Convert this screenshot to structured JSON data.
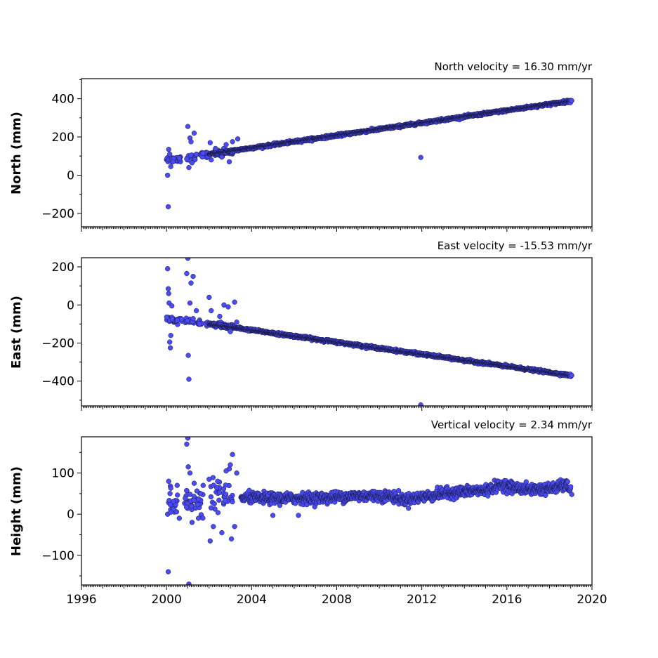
{
  "chart_data": [
    {
      "type": "scatter",
      "name": "north",
      "title": "North velocity = 16.30 mm/yr",
      "ylabel": "North (mm)",
      "xlim": [
        1996,
        2020
      ],
      "ylim": [
        -270,
        505
      ],
      "yticks": [
        -200,
        0,
        200,
        400
      ],
      "ytick_labels": [
        "−200",
        "0",
        "200",
        "400"
      ],
      "xticks": [],
      "xtick_labels": [],
      "trend": {
        "start": [
          2002.0,
          110
        ],
        "end": [
          2019.0,
          388
        ]
      },
      "clusters": [
        {
          "x": 2000.15,
          "y": 82
        },
        {
          "x": 2000.45,
          "y": 85
        },
        {
          "x": 2001.2,
          "y": 93
        },
        {
          "x": 2001.75,
          "y": 105
        },
        {
          "x": 2002.4,
          "y": 115
        },
        {
          "x": 2002.9,
          "y": 122
        }
      ],
      "points": [
        [
          2000.05,
          0
        ],
        [
          2000.08,
          -165
        ],
        [
          2000.1,
          135
        ],
        [
          2000.15,
          110
        ],
        [
          2000.2,
          45
        ],
        [
          2000.3,
          70
        ],
        [
          2000.6,
          90
        ],
        [
          2000.95,
          85
        ],
        [
          2001.0,
          255
        ],
        [
          2001.05,
          40
        ],
        [
          2001.1,
          195
        ],
        [
          2001.15,
          175
        ],
        [
          2001.2,
          65
        ],
        [
          2001.3,
          220
        ],
        [
          2001.4,
          110
        ],
        [
          2002.05,
          170
        ],
        [
          2002.1,
          80
        ],
        [
          2002.3,
          140
        ],
        [
          2002.6,
          95
        ],
        [
          2002.8,
          160
        ],
        [
          2002.95,
          70
        ],
        [
          2003.1,
          175
        ],
        [
          2003.35,
          190
        ],
        [
          2011.95,
          93
        ],
        [
          2019.05,
          390
        ]
      ]
    },
    {
      "type": "scatter",
      "name": "east",
      "title": "East velocity = -15.53 mm/yr",
      "ylabel": "East (mm)",
      "xlim": [
        1996,
        2020
      ],
      "ylim": [
        -530,
        248
      ],
      "yticks": [
        -400,
        -200,
        0,
        200
      ],
      "ytick_labels": [
        "−400",
        "−200",
        "0",
        "200"
      ],
      "xticks": [],
      "xtick_labels": [],
      "trend": {
        "start": [
          2002.0,
          -100
        ],
        "end": [
          2019.0,
          -370
        ]
      },
      "clusters": [
        {
          "x": 2000.2,
          "y": -75
        },
        {
          "x": 2000.5,
          "y": -80
        },
        {
          "x": 2001.1,
          "y": -88
        },
        {
          "x": 2001.7,
          "y": -95
        },
        {
          "x": 2002.4,
          "y": -105
        },
        {
          "x": 2002.9,
          "y": -112
        }
      ],
      "points": [
        [
          2000.05,
          190
        ],
        [
          2000.08,
          85
        ],
        [
          2000.1,
          60
        ],
        [
          2000.12,
          10
        ],
        [
          2000.15,
          -195
        ],
        [
          2000.18,
          -225
        ],
        [
          2000.2,
          -160
        ],
        [
          2000.25,
          -5
        ],
        [
          2000.95,
          165
        ],
        [
          2001.0,
          245
        ],
        [
          2001.02,
          -265
        ],
        [
          2001.05,
          -390
        ],
        [
          2001.1,
          10
        ],
        [
          2001.15,
          115
        ],
        [
          2001.25,
          150
        ],
        [
          2001.4,
          -30
        ],
        [
          2002.0,
          40
        ],
        [
          2002.1,
          -30
        ],
        [
          2002.5,
          -60
        ],
        [
          2002.7,
          0
        ],
        [
          2002.9,
          -10
        ],
        [
          2003.0,
          -140
        ],
        [
          2003.2,
          15
        ],
        [
          2003.3,
          -90
        ],
        [
          2011.95,
          -525
        ],
        [
          2019.05,
          -370
        ]
      ]
    },
    {
      "type": "scatter",
      "name": "height",
      "title": "Vertical velocity = 2.34 mm/yr",
      "ylabel": "Height (mm)",
      "xlim": [
        1996,
        2020
      ],
      "ylim": [
        -172,
        188
      ],
      "yticks": [
        -100,
        0,
        100
      ],
      "ytick_labels": [
        "−100",
        "0",
        "100"
      ],
      "xticks": [
        1996,
        2000,
        2004,
        2008,
        2012,
        2016,
        2020
      ],
      "xtick_labels": [
        "1996",
        "2000",
        "2004",
        "2008",
        "2012",
        "2016",
        "2020"
      ],
      "trend_points": [
        [
          2003.5,
          40
        ],
        [
          2005.5,
          38
        ],
        [
          2007.5,
          40
        ],
        [
          2009.0,
          45
        ],
        [
          2010.5,
          44
        ],
        [
          2011.2,
          35
        ],
        [
          2013.0,
          50
        ],
        [
          2014.0,
          55
        ],
        [
          2015.0,
          58
        ],
        [
          2015.8,
          72
        ],
        [
          2016.3,
          65
        ],
        [
          2017.0,
          60
        ],
        [
          2018.0,
          62
        ],
        [
          2018.8,
          70
        ],
        [
          2019.0,
          60
        ]
      ],
      "clusters": [
        {
          "x": 2000.3,
          "y": 35
        },
        {
          "x": 2001.0,
          "y": 30
        },
        {
          "x": 2001.5,
          "y": 30
        },
        {
          "x": 2002.3,
          "y": 40
        },
        {
          "x": 2002.9,
          "y": 35
        }
      ],
      "points": [
        [
          2000.05,
          0
        ],
        [
          2000.08,
          -140
        ],
        [
          2000.1,
          80
        ],
        [
          2000.2,
          5
        ],
        [
          2000.5,
          70
        ],
        [
          2000.6,
          -10
        ],
        [
          2000.95,
          170
        ],
        [
          2001.0,
          185
        ],
        [
          2001.02,
          115
        ],
        [
          2001.05,
          -170
        ],
        [
          2001.1,
          100
        ],
        [
          2001.2,
          -20
        ],
        [
          2001.3,
          75
        ],
        [
          2001.5,
          -10
        ],
        [
          2001.6,
          50
        ],
        [
          2002.0,
          85
        ],
        [
          2002.05,
          -65
        ],
        [
          2002.2,
          -30
        ],
        [
          2002.4,
          80
        ],
        [
          2002.6,
          -45
        ],
        [
          2002.8,
          105
        ],
        [
          2002.95,
          110
        ],
        [
          2003.0,
          120
        ],
        [
          2003.05,
          -60
        ],
        [
          2003.1,
          145
        ],
        [
          2003.2,
          -30
        ],
        [
          2003.3,
          100
        ],
        [
          2005.0,
          -3
        ],
        [
          2006.2,
          -3
        ],
        [
          2019.05,
          48
        ]
      ]
    }
  ]
}
